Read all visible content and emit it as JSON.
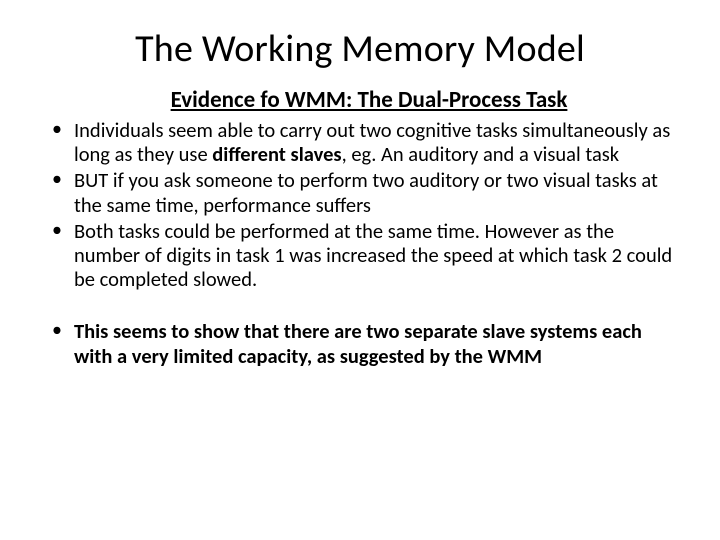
{
  "slide": {
    "title": "The Working Memory Model",
    "subtitle": "Evidence fo WMM: The Dual-Process Task",
    "bullets": [
      {
        "segments": [
          {
            "text": "Individuals seem able to carry out two cognitive tasks simultaneously as long as they use ",
            "bold": false
          },
          {
            "text": "different slaves",
            "bold": true
          },
          {
            "text": ", eg. An auditory and a visual task",
            "bold": false
          }
        ]
      },
      {
        "segments": [
          {
            "text": "BUT if you ask someone to perform two auditory or two visual tasks at the same time, performance suffers",
            "bold": false
          }
        ]
      },
      {
        "segments": [
          {
            "text": "Both tasks could be performed at the same time.  However as the number of digits in task 1 was increased the speed at which task 2 could be completed slowed.",
            "bold": false
          }
        ]
      }
    ],
    "conclusion": {
      "segments": [
        {
          "text": "This seems to show that there are two separate slave systems each with a very limited capacity, as suggested by the WMM",
          "bold": true
        }
      ]
    },
    "colors": {
      "background": "#ffffff",
      "text": "#000000"
    },
    "fonts": {
      "title_size": 38,
      "subtitle_size": 23,
      "body_size": 20.5
    }
  }
}
